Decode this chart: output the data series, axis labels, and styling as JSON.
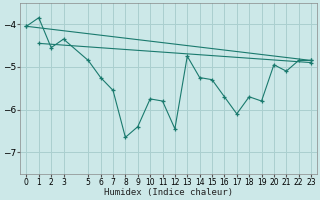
{
  "xlabel": "Humidex (Indice chaleur)",
  "background_color": "#cce8e8",
  "line_color": "#1a7a6e",
  "grid_color": "#aacfcf",
  "xlim": [
    -0.5,
    23.5
  ],
  "ylim": [
    -7.5,
    -3.5
  ],
  "yticks": [
    -7,
    -6,
    -5,
    -4
  ],
  "xticks": [
    0,
    1,
    2,
    3,
    5,
    6,
    7,
    8,
    9,
    10,
    11,
    12,
    13,
    14,
    15,
    16,
    17,
    18,
    19,
    20,
    21,
    22,
    23
  ],
  "line1_x": [
    0,
    1,
    2,
    3,
    5,
    6,
    7,
    8,
    9,
    10,
    11,
    12,
    13,
    14,
    15,
    16,
    17,
    18,
    19,
    20,
    21,
    22,
    23
  ],
  "line1_y": [
    -4.05,
    -3.85,
    -4.55,
    -4.35,
    -4.85,
    -5.25,
    -5.55,
    -6.65,
    -6.4,
    -5.75,
    -5.8,
    -6.45,
    -4.75,
    -5.25,
    -5.3,
    -5.7,
    -6.1,
    -5.7,
    -5.8,
    -4.95,
    -5.1,
    -4.85,
    -4.85
  ],
  "line2_x": [
    0,
    23
  ],
  "line2_y": [
    -4.05,
    -4.85
  ],
  "line3_x": [
    1,
    23
  ],
  "line3_y": [
    -4.45,
    -4.9
  ]
}
